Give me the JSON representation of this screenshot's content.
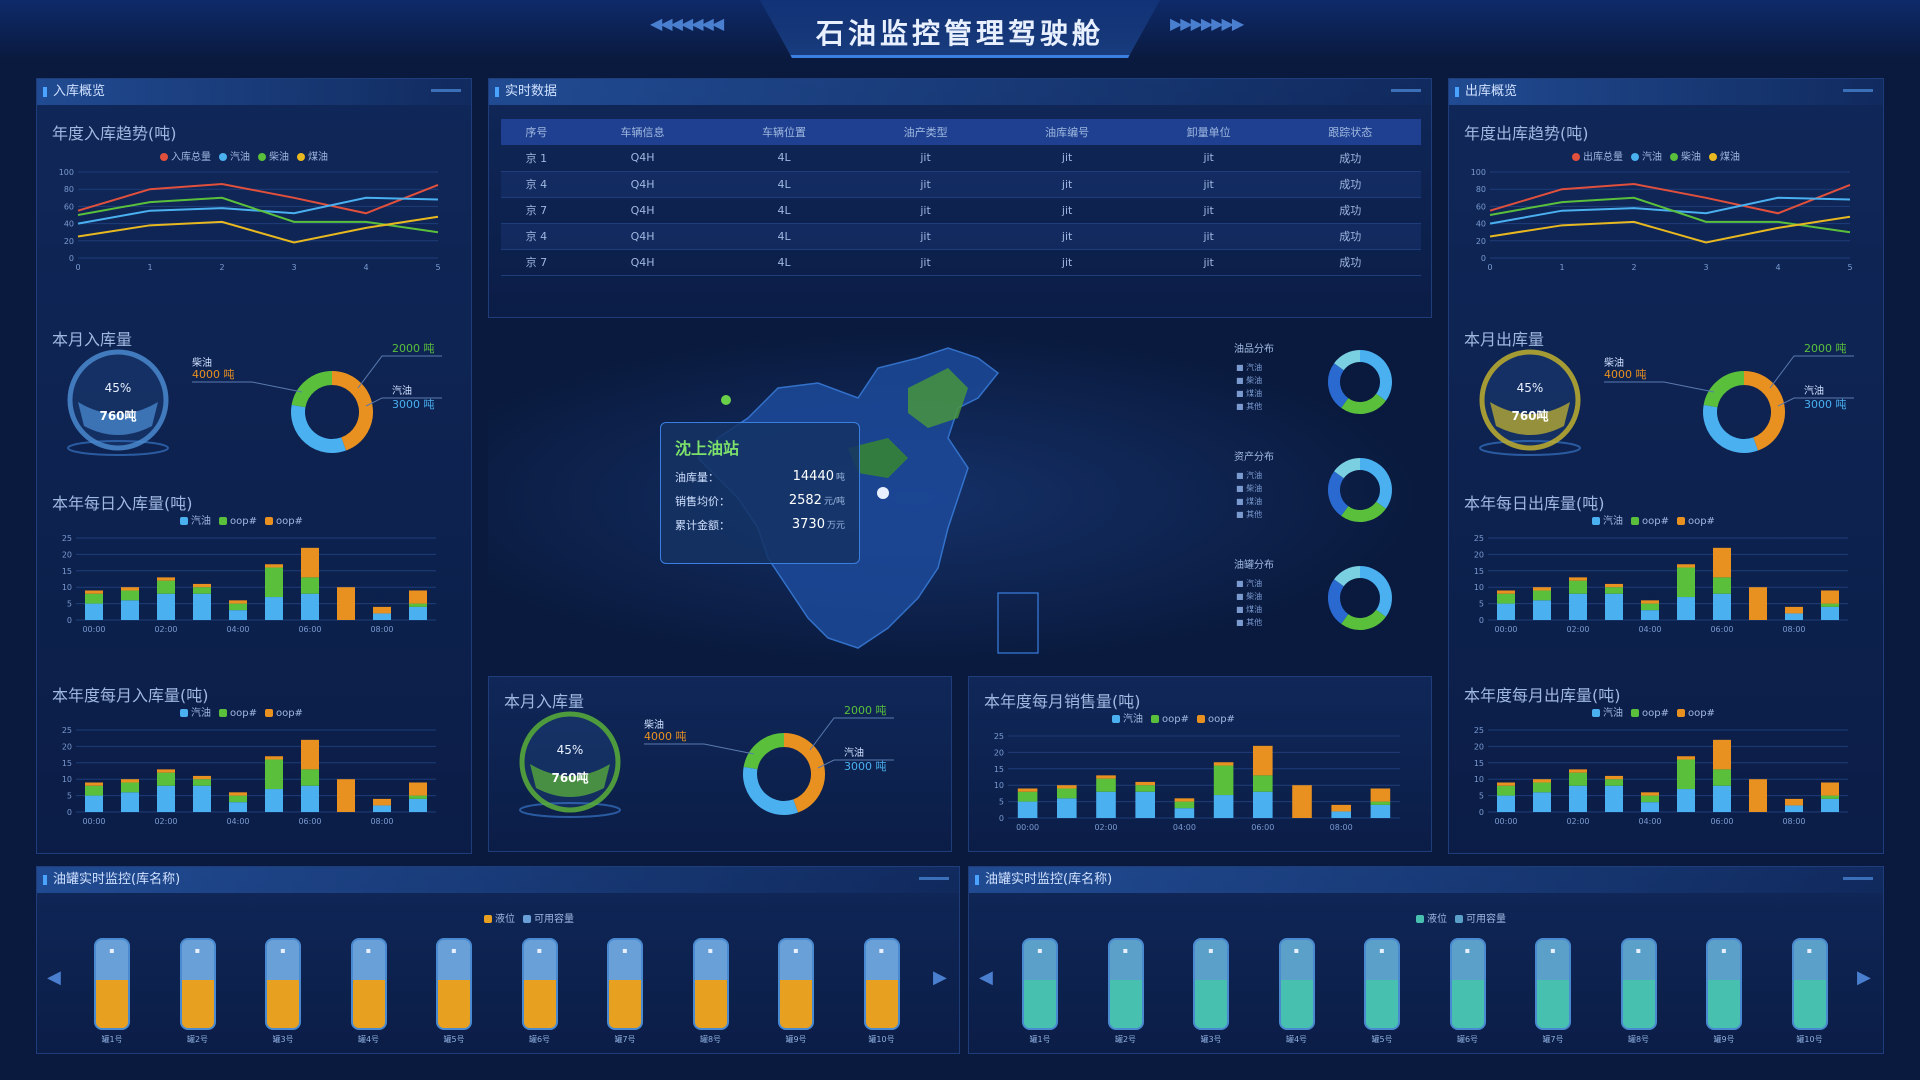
{
  "header": {
    "title": "石油监控管理驾驶舱"
  },
  "left_panel": {
    "title": "入库概览"
  },
  "center_top": {
    "title": "实时数据"
  },
  "right_panel": {
    "title": "出库概览"
  },
  "bottom_left": {
    "title": "油罐实时监控(库名称)",
    "legend": [
      "液位",
      "可用容量"
    ]
  },
  "bottom_right": {
    "title": "油罐实时监控(库名称)",
    "legend": [
      "液位",
      "可用容量"
    ]
  },
  "line_left": {
    "subtitle": "年度入库趋势(吨)",
    "legend": [
      "入库总量",
      "汽油",
      "柴油",
      "煤油"
    ]
  },
  "line_right": {
    "subtitle": "年度出库趋势(吨)",
    "legend": [
      "出库总量",
      "汽油",
      "柴油",
      "煤油"
    ]
  },
  "gauge_left": {
    "subtitle": "本月入库量",
    "percent": "45%",
    "value": "760吨",
    "left_label": "柴油",
    "left_value": "4000 吨",
    "right_value_top": "2000 吨",
    "right_label": "汽油",
    "right_value": "3000 吨"
  },
  "gauge_right": {
    "subtitle": "本月出库量",
    "percent": "45%",
    "value": "760吨",
    "left_label": "柴油",
    "left_value": "4000 吨",
    "right_value_top": "2000 吨",
    "right_label": "汽油",
    "right_value": "3000 吨"
  },
  "gauge_center": {
    "subtitle": "本月入库量",
    "percent": "45%",
    "value": "760吨",
    "left_label": "柴油",
    "left_value": "4000 吨",
    "right_value_top": "2000 吨",
    "right_label": "汽油",
    "right_value": "3000 吨"
  },
  "bar_left1": {
    "subtitle": "本年每日入库量(吨)"
  },
  "bar_left2": {
    "subtitle": "本年度每月入库量(吨)"
  },
  "bar_center": {
    "subtitle": "本年度每月销售量(吨)"
  },
  "bar_right1": {
    "subtitle": "本年每日出库量(吨)"
  },
  "bar_right2": {
    "subtitle": "本年度每月出库量(吨)"
  },
  "bar_legend": [
    "汽油",
    "oop#",
    "oop#"
  ],
  "table": {
    "headers": [
      "序号",
      "车辆信息",
      "车辆位置",
      "油产类型",
      "油库编号",
      "卸量单位",
      "跟踪状态"
    ],
    "rows": [
      [
        "京 1",
        "Q4H",
        "4L",
        "jit",
        "jit",
        "jit",
        "成功"
      ],
      [
        "京 4",
        "Q4H",
        "4L",
        "jit",
        "jit",
        "jit",
        "成功"
      ],
      [
        "京 7",
        "Q4H",
        "4L",
        "jit",
        "jit",
        "jit",
        "成功"
      ],
      [
        "京 4",
        "Q4H",
        "4L",
        "jit",
        "jit",
        "jit",
        "成功"
      ],
      [
        "京 7",
        "Q4H",
        "4L",
        "jit",
        "jit",
        "jit",
        "成功"
      ]
    ]
  },
  "map_tooltip": {
    "title": "沈上油站",
    "rows": [
      {
        "label": "油库量：",
        "value": "14440",
        "unit": "吨"
      },
      {
        "label": "销售均价：",
        "value": "2582",
        "unit": "元/吨"
      },
      {
        "label": "累计金额：",
        "value": "3730",
        "unit": "万元"
      }
    ]
  },
  "donuts": [
    {
      "title": "油品分布",
      "items": [
        "汽油",
        "柴油",
        "煤油",
        "其他"
      ]
    },
    {
      "title": "资产分布",
      "items": [
        "汽油",
        "柴油",
        "煤油",
        "其他"
      ]
    },
    {
      "title": "油罐分布",
      "items": [
        "汽油",
        "柴油",
        "煤油",
        "其他"
      ]
    }
  ],
  "tank_labels": [
    "罐1号",
    "罐2号",
    "罐3号",
    "罐4号",
    "罐5号",
    "罐6号",
    "罐7号",
    "罐8号",
    "罐9号",
    "罐10号"
  ],
  "colors": {
    "red": "#e0503c",
    "blue": "#4ab0f0",
    "green": "#5ac03c",
    "yellow": "#e8b820",
    "orange": "#e89020",
    "bg": "#0a1a3e"
  },
  "chart_data": [
    {
      "type": "line",
      "title": "年度入库趋势(吨)",
      "x": [
        "0",
        "1",
        "2",
        "3",
        "4",
        "5"
      ],
      "ylim": [
        0,
        100
      ],
      "series": [
        {
          "name": "入库总量",
          "values": [
            55,
            80,
            86,
            70,
            52,
            85
          ]
        },
        {
          "name": "汽油",
          "values": [
            40,
            55,
            58,
            52,
            70,
            68
          ]
        },
        {
          "name": "柴油",
          "values": [
            50,
            65,
            70,
            42,
            42,
            30
          ]
        },
        {
          "name": "煤油",
          "values": [
            25,
            38,
            42,
            18,
            35,
            48
          ]
        }
      ]
    },
    {
      "type": "line",
      "title": "年度出库趋势(吨)",
      "x": [
        "0",
        "1",
        "2",
        "3",
        "4",
        "5"
      ],
      "ylim": [
        0,
        100
      ],
      "series": [
        {
          "name": "出库总量",
          "values": [
            55,
            80,
            86,
            70,
            52,
            85
          ]
        },
        {
          "name": "汽油",
          "values": [
            40,
            55,
            58,
            52,
            70,
            68
          ]
        },
        {
          "name": "柴油",
          "values": [
            50,
            65,
            70,
            42,
            42,
            30
          ]
        },
        {
          "name": "煤油",
          "values": [
            25,
            38,
            42,
            18,
            35,
            48
          ]
        }
      ]
    },
    {
      "type": "bar",
      "stacked": true,
      "x_ticks": [
        "00:00",
        "02:00",
        "04:00",
        "06:00",
        "08:00"
      ],
      "ylim": [
        0,
        25
      ],
      "series": [
        {
          "name": "汽油",
          "values": [
            5,
            6,
            8,
            8,
            3,
            7,
            8,
            0,
            2,
            4
          ]
        },
        {
          "name": "oop#",
          "values": [
            3,
            3,
            4,
            2,
            2,
            9,
            5,
            0,
            0,
            1
          ]
        },
        {
          "name": "oop#",
          "values": [
            1,
            1,
            1,
            1,
            1,
            1,
            9,
            10,
            2,
            4
          ]
        }
      ]
    },
    {
      "type": "pie",
      "title": "本月入库量",
      "values": [
        {
          "label": "柴油",
          "value": 4000
        },
        {
          "label": "汽油",
          "value": 3000
        },
        {
          "label": "",
          "value": 2000
        }
      ]
    }
  ]
}
